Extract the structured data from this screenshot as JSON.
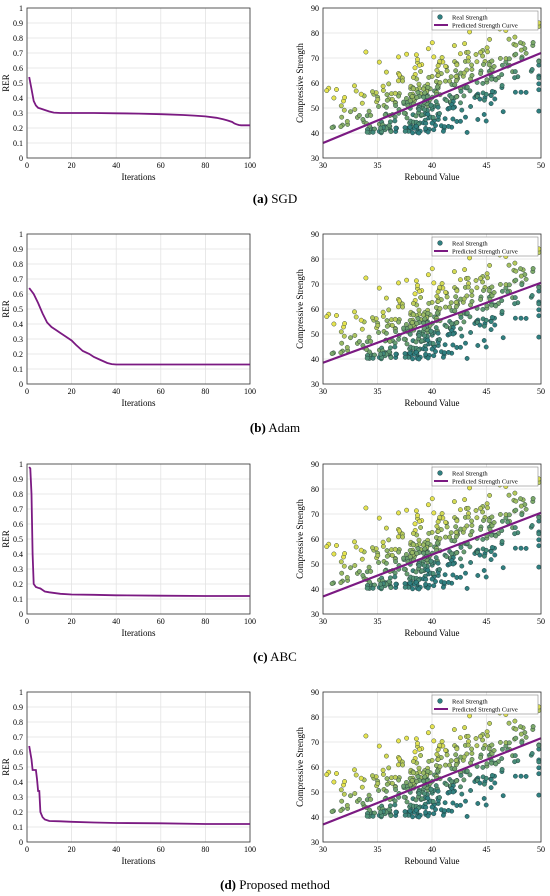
{
  "chart_data": [
    {
      "type": "line",
      "xlabel": "Iterations",
      "ylabel": "RER",
      "xlim": [
        0,
        100
      ],
      "ylim": [
        0,
        1
      ],
      "xticks": [
        "0",
        "20",
        "40",
        "60",
        "80",
        "100"
      ],
      "yticks": [
        "0",
        "0.1",
        "0.2",
        "0.3",
        "0.4",
        "0.5",
        "0.6",
        "0.7",
        "0.8",
        "0.9",
        "1"
      ],
      "grid": true,
      "color": "#7B1A82",
      "x": [
        1,
        2,
        3,
        4,
        5,
        6,
        8,
        10,
        12,
        15,
        20,
        30,
        40,
        50,
        60,
        70,
        75,
        80,
        85,
        88,
        90,
        92,
        93,
        94,
        95,
        96,
        98,
        100
      ],
      "y": [
        0.54,
        0.46,
        0.38,
        0.35,
        0.335,
        0.33,
        0.32,
        0.31,
        0.303,
        0.3,
        0.3,
        0.3,
        0.298,
        0.296,
        0.292,
        0.287,
        0.283,
        0.277,
        0.268,
        0.258,
        0.25,
        0.24,
        0.23,
        0.225,
        0.22,
        0.218,
        0.218,
        0.218
      ]
    },
    {
      "type": "scatter",
      "xlabel": "Rebound Value",
      "ylabel": "Compressive Strength",
      "xlim": [
        30,
        50
      ],
      "ylim": [
        30,
        90
      ],
      "xticks": [
        "30",
        "35",
        "40",
        "45",
        "50"
      ],
      "yticks": [
        "30",
        "40",
        "50",
        "60",
        "70",
        "80",
        "90"
      ],
      "grid": true,
      "legend": "top-right",
      "series": [
        {
          "name": "Real Strength",
          "kind": "points",
          "count": 430
        },
        {
          "name": "Predicted Strength Curve",
          "kind": "line",
          "x": [
            30,
            50
          ],
          "y": [
            36,
            72
          ],
          "color": "#7B1A82"
        }
      ]
    },
    {
      "type": "line",
      "xlabel": "Iterations",
      "ylabel": "RER",
      "xlim": [
        0,
        100
      ],
      "ylim": [
        0,
        1
      ],
      "xticks": [
        "0",
        "20",
        "40",
        "60",
        "80",
        "100"
      ],
      "yticks": [
        "0",
        "0.1",
        "0.2",
        "0.3",
        "0.4",
        "0.5",
        "0.6",
        "0.7",
        "0.8",
        "0.9",
        "1"
      ],
      "grid": true,
      "color": "#7B1A82",
      "x": [
        1,
        3,
        5,
        7,
        9,
        11,
        13,
        15,
        17,
        20,
        22,
        25,
        28,
        30,
        33,
        36,
        38,
        40,
        42,
        50,
        60,
        80,
        100
      ],
      "y": [
        0.64,
        0.6,
        0.54,
        0.47,
        0.41,
        0.38,
        0.36,
        0.34,
        0.32,
        0.29,
        0.26,
        0.22,
        0.2,
        0.18,
        0.16,
        0.14,
        0.133,
        0.13,
        0.13,
        0.13,
        0.13,
        0.13,
        0.13
      ]
    },
    {
      "type": "scatter",
      "xlabel": "Rebound Value",
      "ylabel": "Compressive Strength",
      "xlim": [
        30,
        50
      ],
      "ylim": [
        30,
        90
      ],
      "xticks": [
        "30",
        "35",
        "40",
        "45",
        "50"
      ],
      "yticks": [
        "30",
        "40",
        "50",
        "60",
        "70",
        "80",
        "90"
      ],
      "grid": true,
      "legend": "top-right",
      "series": [
        {
          "name": "Real Strength",
          "kind": "points",
          "count": 430
        },
        {
          "name": "Predicted Strength Curve",
          "kind": "line",
          "x": [
            30,
            50
          ],
          "y": [
            38.5,
            70.5
          ],
          "color": "#7B1A82"
        }
      ]
    },
    {
      "type": "line",
      "xlabel": "Iterations",
      "ylabel": "RER",
      "xlim": [
        0,
        100
      ],
      "ylim": [
        0,
        1
      ],
      "xticks": [
        "0",
        "20",
        "40",
        "60",
        "80",
        "100"
      ],
      "yticks": [
        "0",
        "0.1",
        "0.2",
        "0.3",
        "0.4",
        "0.5",
        "0.6",
        "0.7",
        "0.8",
        "0.9",
        "1"
      ],
      "grid": true,
      "color": "#7B1A82",
      "x": [
        1,
        1.5,
        2,
        2.5,
        3,
        4,
        5,
        6,
        7,
        8,
        10,
        15,
        20,
        30,
        40,
        60,
        80,
        100
      ],
      "y": [
        0.98,
        0.97,
        0.8,
        0.4,
        0.2,
        0.18,
        0.175,
        0.17,
        0.16,
        0.15,
        0.145,
        0.135,
        0.13,
        0.128,
        0.125,
        0.122,
        0.12,
        0.12
      ]
    },
    {
      "type": "scatter",
      "xlabel": "Rebound Value",
      "ylabel": "Compressive Strength",
      "xlim": [
        30,
        50
      ],
      "ylim": [
        30,
        90
      ],
      "xticks": [
        "30",
        "35",
        "40",
        "45",
        "50"
      ],
      "yticks": [
        "30",
        "40",
        "50",
        "60",
        "70",
        "80",
        "90"
      ],
      "grid": true,
      "legend": "top-right",
      "series": [
        {
          "name": "Real Strength",
          "kind": "points",
          "count": 430
        },
        {
          "name": "Predicted Strength Curve",
          "kind": "line",
          "x": [
            30,
            50
          ],
          "y": [
            37,
            70.5
          ],
          "color": "#7B1A82"
        }
      ]
    },
    {
      "type": "line",
      "xlabel": "Iterations",
      "ylabel": "RER",
      "xlim": [
        0,
        100
      ],
      "ylim": [
        0,
        1
      ],
      "xticks": [
        "0",
        "20",
        "40",
        "60",
        "80",
        "100"
      ],
      "yticks": [
        "0",
        "0.1",
        "0.2",
        "0.3",
        "0.4",
        "0.5",
        "0.6",
        "0.7",
        "0.8",
        "0.9",
        "1"
      ],
      "grid": true,
      "color": "#7B1A82",
      "x": [
        1,
        2,
        2.5,
        3,
        4,
        4.5,
        5,
        5.5,
        6,
        7,
        8,
        10,
        15,
        20,
        30,
        40,
        60,
        80,
        100
      ],
      "y": [
        0.64,
        0.55,
        0.48,
        0.48,
        0.48,
        0.42,
        0.34,
        0.34,
        0.2,
        0.165,
        0.15,
        0.14,
        0.138,
        0.135,
        0.13,
        0.127,
        0.125,
        0.12,
        0.12
      ]
    },
    {
      "type": "scatter",
      "xlabel": "Rebound Value",
      "ylabel": "Compressive Strength",
      "xlim": [
        30,
        50
      ],
      "ylim": [
        30,
        90
      ],
      "xticks": [
        "30",
        "35",
        "40",
        "45",
        "50"
      ],
      "yticks": [
        "30",
        "40",
        "50",
        "60",
        "70",
        "80",
        "90"
      ],
      "grid": true,
      "legend": "top-right",
      "series": [
        {
          "name": "Real Strength",
          "kind": "points",
          "count": 430
        },
        {
          "name": "Predicted Strength Curve",
          "kind": "line",
          "x": [
            30,
            50
          ],
          "y": [
            37,
            71.5
          ],
          "color": "#7B1A82"
        }
      ]
    }
  ],
  "captions": [
    {
      "letter": "(a)",
      "text": "SGD"
    },
    {
      "letter": "(b)",
      "text": "Adam"
    },
    {
      "letter": "(c)",
      "text": "ABC"
    },
    {
      "letter": "(d)",
      "text": "Proposed method"
    }
  ],
  "colors": {
    "curve": "#7B1A82",
    "grid": "#e3e3e3",
    "point_low": "#2f7f80",
    "point_high": "#e6e34f"
  }
}
